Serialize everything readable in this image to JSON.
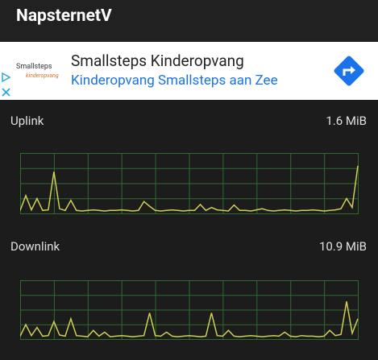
{
  "app_bar": {
    "title": "NapsternetV"
  },
  "ad": {
    "logo": {
      "name": "Smallsteps",
      "tagline": "kinderopvang"
    },
    "headline": "Smallsteps Kinderopvang",
    "subline": "Kinderopvang Smallsteps aan Zee"
  },
  "uplink": {
    "label": "Uplink",
    "total": "1.6 MiB",
    "ylim": [
      0,
      100
    ],
    "values": [
      5,
      30,
      6,
      25,
      5,
      6,
      70,
      8,
      5,
      22,
      5,
      4,
      5,
      6,
      5,
      4,
      5,
      5,
      6,
      5,
      4,
      5,
      20,
      12,
      5,
      4,
      5,
      6,
      5,
      4,
      5,
      5,
      15,
      5,
      10,
      6,
      5,
      4,
      14,
      5,
      5,
      4,
      6,
      8,
      5,
      4,
      5,
      6,
      5,
      4,
      5,
      5,
      6,
      5,
      4,
      5,
      6,
      8,
      25,
      10,
      80
    ]
  },
  "downlink": {
    "label": "Downlink",
    "total": "10.9 MiB",
    "ylim": [
      0,
      100
    ],
    "values": [
      5,
      25,
      6,
      20,
      5,
      6,
      30,
      7,
      5,
      35,
      6,
      5,
      4,
      15,
      5,
      12,
      4,
      5,
      6,
      5,
      4,
      5,
      6,
      45,
      6,
      5,
      12,
      5,
      4,
      5,
      6,
      5,
      4,
      5,
      45,
      6,
      5,
      15,
      5,
      4,
      5,
      6,
      5,
      4,
      5,
      6,
      5,
      12,
      5,
      4,
      6,
      5,
      5,
      4,
      5,
      15,
      6,
      8,
      65,
      10,
      35
    ]
  }
}
